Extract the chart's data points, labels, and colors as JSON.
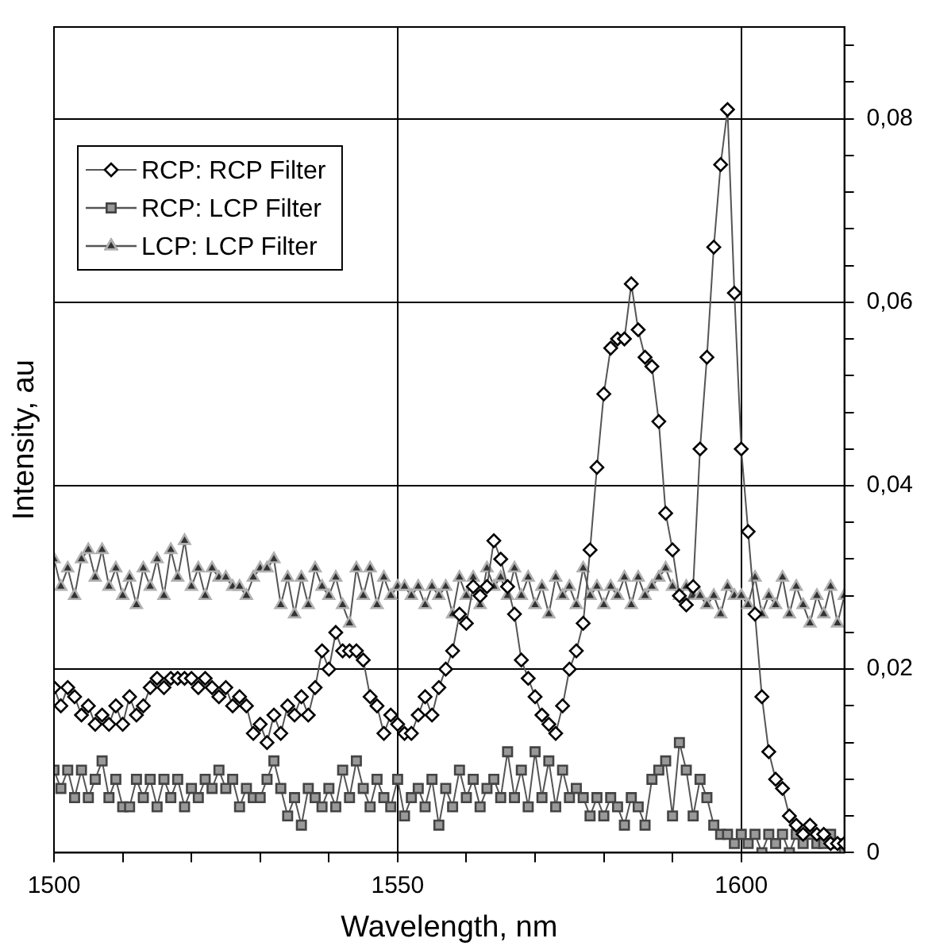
{
  "chart_data": {
    "type": "line",
    "xlabel": "Wavelength, nm",
    "ylabel": "Intensity, au",
    "x": [
      1500,
      1501,
      1502,
      1503,
      1504,
      1505,
      1506,
      1507,
      1508,
      1509,
      1510,
      1511,
      1512,
      1513,
      1514,
      1515,
      1516,
      1517,
      1518,
      1519,
      1520,
      1521,
      1522,
      1523,
      1524,
      1525,
      1526,
      1527,
      1528,
      1529,
      1530,
      1531,
      1532,
      1533,
      1534,
      1535,
      1536,
      1537,
      1538,
      1539,
      1540,
      1541,
      1542,
      1543,
      1544,
      1545,
      1546,
      1547,
      1548,
      1549,
      1550,
      1551,
      1552,
      1553,
      1554,
      1555,
      1556,
      1557,
      1558,
      1559,
      1560,
      1561,
      1562,
      1563,
      1564,
      1565,
      1566,
      1567,
      1568,
      1569,
      1570,
      1571,
      1572,
      1573,
      1574,
      1575,
      1576,
      1577,
      1578,
      1579,
      1580,
      1581,
      1582,
      1583,
      1584,
      1585,
      1586,
      1587,
      1588,
      1589,
      1590,
      1591,
      1592,
      1593,
      1594,
      1595,
      1596,
      1597,
      1598,
      1599,
      1600,
      1601,
      1602,
      1603,
      1604,
      1605,
      1606,
      1607,
      1608,
      1609,
      1610,
      1611,
      1612,
      1613,
      1614,
      1615
    ],
    "series": [
      {
        "name": "RCP: RCP Filter",
        "color": "#000000",
        "marker": "diamond",
        "values": [
          0.018,
          0.016,
          0.018,
          0.017,
          0.015,
          0.016,
          0.014,
          0.015,
          0.014,
          0.016,
          0.014,
          0.017,
          0.015,
          0.016,
          0.018,
          0.019,
          0.018,
          0.019,
          0.019,
          0.019,
          0.019,
          0.018,
          0.019,
          0.018,
          0.017,
          0.018,
          0.016,
          0.017,
          0.016,
          0.013,
          0.014,
          0.012,
          0.015,
          0.013,
          0.016,
          0.015,
          0.017,
          0.015,
          0.018,
          0.022,
          0.02,
          0.024,
          0.022,
          0.022,
          0.022,
          0.021,
          0.017,
          0.016,
          0.013,
          0.015,
          0.014,
          0.013,
          0.013,
          0.015,
          0.017,
          0.015,
          0.018,
          0.02,
          0.022,
          0.026,
          0.025,
          0.029,
          0.028,
          0.029,
          0.034,
          0.032,
          0.029,
          0.026,
          0.021,
          0.019,
          0.017,
          0.015,
          0.014,
          0.013,
          0.016,
          0.02,
          0.022,
          0.025,
          0.033,
          0.042,
          0.05,
          0.055,
          0.056,
          0.056,
          0.062,
          0.057,
          0.054,
          0.053,
          0.047,
          0.037,
          0.033,
          0.028,
          0.027,
          0.029,
          0.044,
          0.054,
          0.066,
          0.075,
          0.081,
          0.061,
          0.044,
          0.035,
          0.026,
          0.017,
          0.011,
          0.008,
          0.007,
          0.004,
          0.003,
          0.002,
          0.003,
          0.002,
          0.002,
          0.001,
          0.001,
          0.001
        ]
      },
      {
        "name": "RCP: LCP Filter",
        "color": "#999999",
        "marker": "square",
        "values": [
          0.009,
          0.007,
          0.009,
          0.006,
          0.009,
          0.006,
          0.008,
          0.01,
          0.006,
          0.008,
          0.005,
          0.005,
          0.008,
          0.006,
          0.008,
          0.005,
          0.008,
          0.006,
          0.008,
          0.005,
          0.007,
          0.006,
          0.008,
          0.007,
          0.009,
          0.007,
          0.008,
          0.005,
          0.007,
          0.006,
          0.006,
          0.008,
          0.01,
          0.007,
          0.004,
          0.006,
          0.003,
          0.007,
          0.006,
          0.005,
          0.007,
          0.005,
          0.009,
          0.006,
          0.01,
          0.007,
          0.005,
          0.008,
          0.006,
          0.005,
          0.008,
          0.004,
          0.006,
          0.007,
          0.005,
          0.008,
          0.003,
          0.007,
          0.005,
          0.009,
          0.006,
          0.008,
          0.005,
          0.007,
          0.008,
          0.006,
          0.011,
          0.006,
          0.009,
          0.005,
          0.011,
          0.006,
          0.01,
          0.005,
          0.009,
          0.006,
          0.007,
          0.006,
          0.004,
          0.006,
          0.004,
          0.006,
          0.005,
          0.003,
          0.006,
          0.005,
          0.003,
          0.008,
          0.009,
          0.01,
          0.004,
          0.012,
          0.009,
          0.004,
          0.008,
          0.006,
          0.003,
          0.002,
          0.002,
          0.001,
          0.002,
          0.001,
          0.002,
          0.0,
          0.002,
          0.001,
          0.002,
          0.0,
          0.002,
          0.001,
          0.002,
          0.001,
          0.001,
          0.002,
          0.001,
          0.0
        ]
      },
      {
        "name": "LCP: LCP Filter",
        "color": "#333333",
        "marker": "triangle",
        "values": [
          0.032,
          0.029,
          0.031,
          0.028,
          0.032,
          0.033,
          0.03,
          0.033,
          0.029,
          0.031,
          0.028,
          0.03,
          0.027,
          0.031,
          0.029,
          0.032,
          0.028,
          0.033,
          0.03,
          0.034,
          0.029,
          0.031,
          0.028,
          0.031,
          0.03,
          0.03,
          0.029,
          0.029,
          0.028,
          0.03,
          0.031,
          0.031,
          0.032,
          0.027,
          0.03,
          0.026,
          0.03,
          0.027,
          0.031,
          0.029,
          0.028,
          0.03,
          0.027,
          0.025,
          0.031,
          0.028,
          0.031,
          0.027,
          0.03,
          0.028,
          0.029,
          0.029,
          0.028,
          0.029,
          0.027,
          0.029,
          0.028,
          0.029,
          0.026,
          0.03,
          0.028,
          0.03,
          0.027,
          0.031,
          0.029,
          0.03,
          0.028,
          0.031,
          0.028,
          0.03,
          0.027,
          0.029,
          0.026,
          0.03,
          0.028,
          0.029,
          0.027,
          0.031,
          0.028,
          0.029,
          0.027,
          0.029,
          0.028,
          0.03,
          0.027,
          0.03,
          0.028,
          0.029,
          0.03,
          0.031,
          0.029,
          0.028,
          0.029,
          0.028,
          0.028,
          0.027,
          0.028,
          0.026,
          0.029,
          0.028,
          0.028,
          0.027,
          0.03,
          0.026,
          0.028,
          0.027,
          0.03,
          0.026,
          0.029,
          0.027,
          0.025,
          0.028,
          0.026,
          0.029,
          0.025,
          0.028
        ]
      }
    ],
    "xlim": [
      1500,
      1615
    ],
    "xticks": [
      1500,
      {
        "value": 1510,
        "label": null
      },
      {
        "value": 1520,
        "label": null
      },
      {
        "value": 1530,
        "label": null
      },
      {
        "value": 1540,
        "label": null
      },
      1550,
      {
        "value": 1560,
        "label": null
      },
      {
        "value": 1570,
        "label": null
      },
      {
        "value": 1580,
        "label": null
      },
      {
        "value": 1590,
        "label": null
      },
      1600
    ],
    "ylim": [
      0,
      0.09
    ],
    "yticks": [
      0,
      {
        "value": 0.004,
        "label": null
      },
      {
        "value": 0.008,
        "label": null
      },
      {
        "value": 0.012,
        "label": null
      },
      {
        "value": 0.016,
        "label": null
      },
      {
        "value": 0.02,
        "label": "0,02"
      },
      {
        "value": 0.024,
        "label": null
      },
      {
        "value": 0.028,
        "label": null
      },
      {
        "value": 0.032,
        "label": null
      },
      {
        "value": 0.036,
        "label": null
      },
      {
        "value": 0.04,
        "label": "0,04"
      },
      {
        "value": 0.044,
        "label": null
      },
      {
        "value": 0.048,
        "label": null
      },
      {
        "value": 0.052,
        "label": null
      },
      {
        "value": 0.056,
        "label": null
      },
      {
        "value": 0.06,
        "label": "0,06"
      },
      {
        "value": 0.064,
        "label": null
      },
      {
        "value": 0.068,
        "label": null
      },
      {
        "value": 0.072,
        "label": null
      },
      {
        "value": 0.076,
        "label": null
      },
      {
        "value": 0.08,
        "label": "0,08"
      },
      {
        "value": 0.084,
        "label": null
      },
      {
        "value": 0.088,
        "label": null
      }
    ],
    "grid": true,
    "legend": "top left",
    "line_style": "solid"
  }
}
